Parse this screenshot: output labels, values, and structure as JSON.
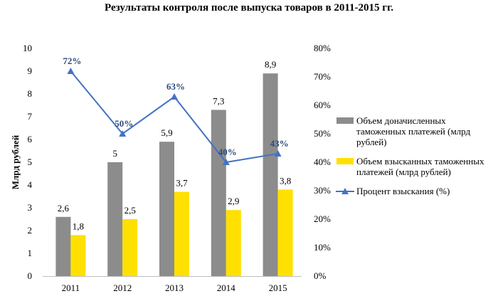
{
  "chart_data": {
    "type": "bar",
    "title": "Результаты контроля после выпуска товаров в 2011-2015 гг.",
    "xlabel": "",
    "ylabel": "Млрд рублей",
    "categories": [
      "2011",
      "2012",
      "2013",
      "2014",
      "2015"
    ],
    "ylim": [
      0,
      10
    ],
    "y_ticks": [
      "0",
      "1",
      "2",
      "3",
      "4",
      "5",
      "6",
      "7",
      "8",
      "9",
      "10"
    ],
    "y2lim": [
      0,
      80
    ],
    "y2_ticks": [
      "0%",
      "10%",
      "20%",
      "30%",
      "40%",
      "50%",
      "60%",
      "70%",
      "80%"
    ],
    "grid": false,
    "legend_position": "right",
    "series": [
      {
        "name": "Объем доначисленных таможенных платежей (млрд рублей)",
        "legend_lines": [
          "Объем доначисленных",
          "таможенных платежей (млрд",
          "рублей)"
        ],
        "type": "bar",
        "axis": "left",
        "color": "#8c8c8c",
        "values": [
          2.6,
          5,
          5.9,
          7.3,
          8.9
        ],
        "labels": [
          "2,6",
          "5",
          "5,9",
          "7,3",
          "8,9"
        ]
      },
      {
        "name": "Объем взысканных таможенных платежей (млрд рублей)",
        "legend_lines": [
          "Объем взысканных таможенных",
          "платежей (млрд рублей)"
        ],
        "type": "bar",
        "axis": "left",
        "color": "#ffe000",
        "values": [
          1.8,
          2.5,
          3.7,
          2.9,
          3.8
        ],
        "labels": [
          "1,8",
          "2,5",
          "3,7",
          "2,9",
          "3,8"
        ]
      },
      {
        "name": "Процент взыскания (%)",
        "legend_lines": [
          "Процент взыскания (%)"
        ],
        "type": "line",
        "axis": "right",
        "color": "#4472c4",
        "values": [
          72,
          50,
          63,
          40,
          43
        ],
        "labels": [
          "72%",
          "50%",
          "63%",
          "40%",
          "43%"
        ]
      }
    ]
  }
}
